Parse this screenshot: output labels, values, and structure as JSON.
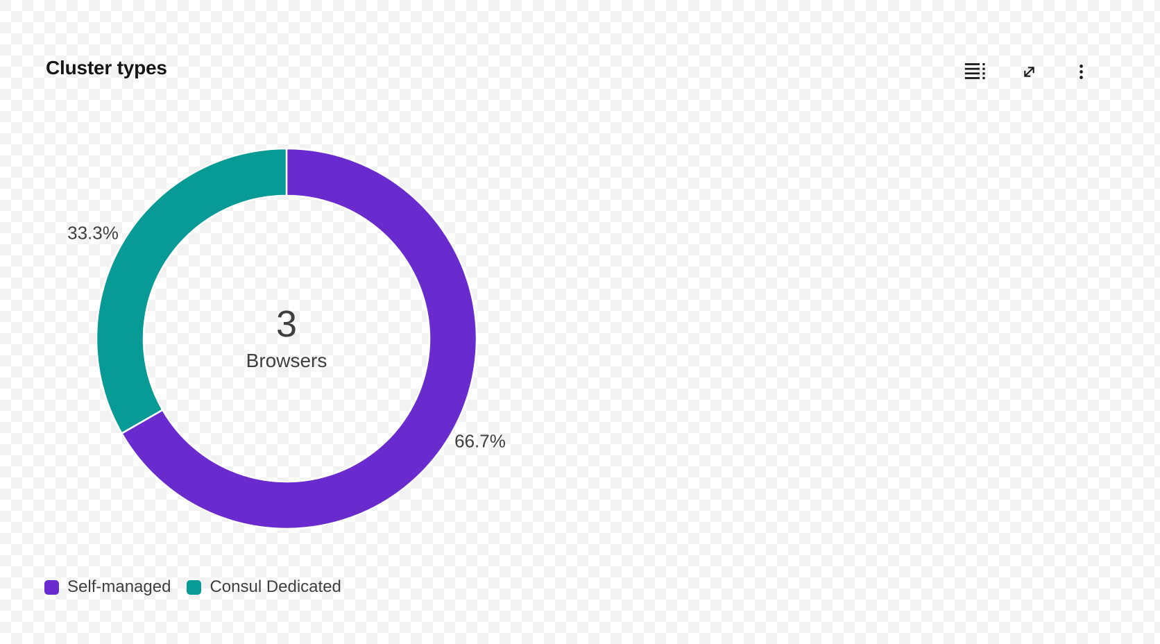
{
  "card": {
    "title": "Cluster types",
    "toolbar": [
      {
        "icon": "data-list-icon"
      },
      {
        "icon": "expand-icon"
      },
      {
        "icon": "kebab-menu-icon"
      }
    ]
  },
  "chart_data": {
    "type": "pie",
    "subtype": "donut",
    "title": "Cluster types",
    "center_label": {
      "value": "3",
      "caption": "Browsers"
    },
    "start_angle_deg": 0,
    "direction": "clockwise",
    "legend_position": "bottom-left",
    "series": [
      {
        "name": "Self-managed",
        "percent": 66.7,
        "percent_label": "66.7%",
        "color": "#6a2bce"
      },
      {
        "name": "Consul Dedicated",
        "percent": 33.3,
        "percent_label": "33.3%",
        "color": "#089a94"
      }
    ]
  },
  "theme": {
    "title_color": "#161616",
    "label_color": "#3f3f3f",
    "icon_color": "#1c1c1c",
    "separator_color": "#ffffff",
    "checker_light": "#ffffff",
    "checker_dark": "#f2f2f2"
  }
}
